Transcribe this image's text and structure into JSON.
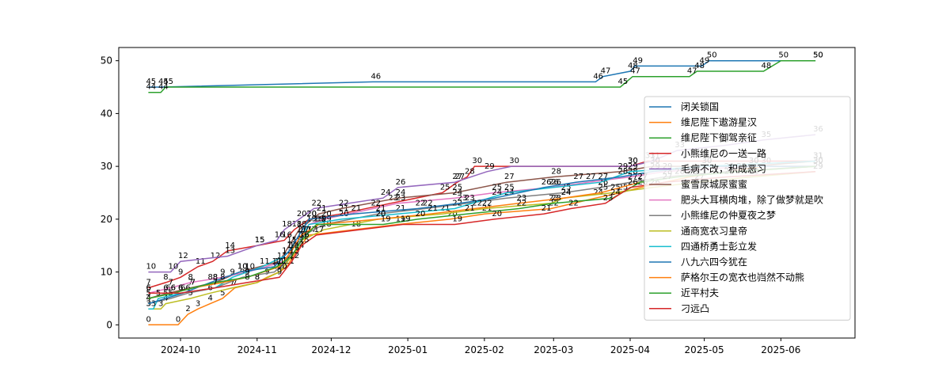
{
  "chart_data": {
    "type": "line",
    "title": "",
    "xlabel": "",
    "ylabel": "",
    "grid": false,
    "legend_position": "center-right",
    "x_range": [
      "2024-09-06",
      "2025-07-01"
    ],
    "ylim": [
      -2.5,
      52.5
    ],
    "x_ticks": [
      {
        "date": "2024-10-01",
        "label": "2024-10"
      },
      {
        "date": "2024-11-01",
        "label": "2024-11"
      },
      {
        "date": "2024-12-01",
        "label": "2024-12"
      },
      {
        "date": "2025-01-01",
        "label": "2025-01"
      },
      {
        "date": "2025-02-01",
        "label": "2025-02"
      },
      {
        "date": "2025-03-01",
        "label": "2025-03"
      },
      {
        "date": "2025-04-01",
        "label": "2025-04"
      },
      {
        "date": "2025-05-01",
        "label": "2025-05"
      },
      {
        "date": "2025-06-01",
        "label": "2025-06"
      }
    ],
    "y_ticks": [
      0,
      10,
      20,
      30,
      40,
      50
    ],
    "series": [
      {
        "name": "闭关锁国",
        "color": "#1f77b4",
        "points": [
          [
            "2024-09-18",
            45
          ],
          [
            "2024-09-23",
            45
          ],
          [
            "2024-12-18",
            46
          ],
          [
            "2025-03-18",
            46
          ],
          [
            "2025-03-21",
            47
          ],
          [
            "2025-04-01",
            48
          ],
          [
            "2025-04-03",
            49
          ],
          [
            "2025-04-30",
            49
          ],
          [
            "2025-05-03",
            50
          ],
          [
            "2025-06-15",
            50
          ]
        ]
      },
      {
        "name": "维尼陛下遨游星汉",
        "color": "#ff7f0e",
        "points": [
          [
            "2024-09-18",
            0
          ],
          [
            "2024-09-30",
            0
          ],
          [
            "2024-10-04",
            2
          ],
          [
            "2024-10-08",
            3
          ],
          [
            "2024-10-13",
            4
          ],
          [
            "2024-10-18",
            5
          ],
          [
            "2024-10-23",
            7
          ],
          [
            "2024-11-01",
            8
          ],
          [
            "2024-11-05",
            9
          ],
          [
            "2024-11-10",
            10
          ],
          [
            "2024-11-13",
            11
          ],
          [
            "2024-11-17",
            14
          ],
          [
            "2024-11-22",
            17
          ],
          [
            "2024-12-10",
            18
          ],
          [
            "2024-12-28",
            19
          ],
          [
            "2025-01-18",
            20
          ],
          [
            "2025-02-01",
            21
          ],
          [
            "2025-02-28",
            22
          ],
          [
            "2025-03-18",
            24
          ],
          [
            "2025-03-28",
            25
          ],
          [
            "2025-04-05",
            26
          ],
          [
            "2025-04-25",
            28
          ],
          [
            "2025-05-25",
            30
          ],
          [
            "2025-06-15",
            30
          ]
        ]
      },
      {
        "name": "维尼陛下御驾亲征",
        "color": "#2ca02c",
        "points": [
          [
            "2024-09-18",
            44
          ],
          [
            "2024-09-23",
            44
          ],
          [
            "2024-09-25",
            45
          ],
          [
            "2025-03-28",
            45
          ],
          [
            "2025-04-02",
            47
          ],
          [
            "2025-04-25",
            47
          ],
          [
            "2025-04-28",
            48
          ],
          [
            "2025-05-25",
            48
          ],
          [
            "2025-06-01",
            50
          ],
          [
            "2025-06-15",
            50
          ]
        ]
      },
      {
        "name": "小熊维尼の一送一路",
        "color": "#d62728",
        "points": [
          [
            "2024-09-18",
            7
          ],
          [
            "2024-09-25",
            8
          ],
          [
            "2024-10-01",
            9
          ],
          [
            "2024-10-08",
            11
          ],
          [
            "2024-10-14",
            12
          ],
          [
            "2024-10-20",
            14
          ],
          [
            "2024-11-01",
            15
          ],
          [
            "2024-11-12",
            16
          ],
          [
            "2024-11-16",
            18
          ],
          [
            "2024-11-22",
            20
          ],
          [
            "2024-12-05",
            21
          ],
          [
            "2024-12-25",
            23
          ],
          [
            "2025-01-15",
            25
          ],
          [
            "2025-01-21",
            27
          ],
          [
            "2025-01-25",
            28
          ],
          [
            "2025-01-28",
            30
          ],
          [
            "2025-04-01",
            30
          ],
          [
            "2025-04-08",
            31
          ],
          [
            "2025-06-15",
            31
          ]
        ]
      },
      {
        "name": "毛病不改，积成恶习",
        "color": "#9467bd",
        "points": [
          [
            "2024-09-18",
            10
          ],
          [
            "2024-09-27",
            10
          ],
          [
            "2024-10-01",
            12
          ],
          [
            "2024-10-20",
            13
          ],
          [
            "2024-11-01",
            15
          ],
          [
            "2024-11-09",
            16
          ],
          [
            "2024-11-12",
            18
          ],
          [
            "2024-11-18",
            20
          ],
          [
            "2024-11-24",
            22
          ],
          [
            "2024-12-22",
            24
          ],
          [
            "2024-12-28",
            26
          ],
          [
            "2025-01-20",
            27
          ],
          [
            "2025-02-02",
            29
          ],
          [
            "2025-02-12",
            30
          ],
          [
            "2025-04-01",
            30
          ],
          [
            "2025-04-10",
            31
          ],
          [
            "2025-04-20",
            33
          ],
          [
            "2025-05-10",
            34
          ],
          [
            "2025-05-25",
            35
          ],
          [
            "2025-06-15",
            36
          ]
        ]
      },
      {
        "name": "蜜雪尿城尿蜜蜜",
        "color": "#8c564b",
        "points": [
          [
            "2024-09-18",
            5
          ],
          [
            "2024-09-26",
            6
          ],
          [
            "2024-10-05",
            7
          ],
          [
            "2024-10-15",
            8
          ],
          [
            "2024-10-25",
            10
          ],
          [
            "2024-11-10",
            12
          ],
          [
            "2024-11-14",
            15
          ],
          [
            "2024-11-18",
            18
          ],
          [
            "2024-11-26",
            21
          ],
          [
            "2024-12-05",
            22
          ],
          [
            "2024-12-28",
            24
          ],
          [
            "2025-01-20",
            25
          ],
          [
            "2025-02-10",
            27
          ],
          [
            "2025-03-01",
            28
          ],
          [
            "2025-03-28",
            29
          ],
          [
            "2025-04-10",
            30
          ],
          [
            "2025-05-20",
            30
          ],
          [
            "2025-06-15",
            31
          ]
        ]
      },
      {
        "name": "肥头大耳横肉堆，除了做梦就是吹",
        "color": "#e377c2",
        "points": [
          [
            "2024-09-18",
            6
          ],
          [
            "2024-09-27",
            7
          ],
          [
            "2024-10-05",
            8
          ],
          [
            "2024-10-18",
            9
          ],
          [
            "2024-10-28",
            10
          ],
          [
            "2024-11-12",
            12
          ],
          [
            "2024-11-16",
            15
          ],
          [
            "2024-11-22",
            19
          ],
          [
            "2024-11-28",
            20
          ],
          [
            "2024-12-18",
            22
          ],
          [
            "2024-12-28",
            23
          ],
          [
            "2025-01-20",
            24
          ],
          [
            "2025-02-05",
            25
          ],
          [
            "2025-02-28",
            26
          ],
          [
            "2025-03-15",
            27
          ],
          [
            "2025-04-01",
            28
          ],
          [
            "2025-04-15",
            29
          ],
          [
            "2025-05-20",
            30
          ],
          [
            "2025-06-15",
            30
          ]
        ]
      },
      {
        "name": "小熊维尼の仲夏夜之梦",
        "color": "#7f7f7f",
        "points": [
          [
            "2024-09-18",
            4
          ],
          [
            "2024-09-27",
            5
          ],
          [
            "2024-10-04",
            6
          ],
          [
            "2024-10-15",
            7
          ],
          [
            "2024-10-26",
            9
          ],
          [
            "2024-11-08",
            10
          ],
          [
            "2024-11-15",
            13
          ],
          [
            "2024-11-20",
            17
          ],
          [
            "2024-11-28",
            19
          ],
          [
            "2024-12-20",
            21
          ],
          [
            "2025-01-08",
            22
          ],
          [
            "2025-01-25",
            23
          ],
          [
            "2025-02-10",
            24
          ],
          [
            "2025-03-05",
            25
          ],
          [
            "2025-03-20",
            26
          ],
          [
            "2025-04-01",
            27
          ],
          [
            "2025-04-15",
            28
          ],
          [
            "2025-05-10",
            29
          ],
          [
            "2025-06-15",
            30
          ]
        ]
      },
      {
        "name": "通商宽衣习皇帝",
        "color": "#bcbd22",
        "points": [
          [
            "2024-09-18",
            3
          ],
          [
            "2024-09-23",
            3
          ],
          [
            "2024-09-25",
            4
          ],
          [
            "2024-10-05",
            5
          ],
          [
            "2024-10-13",
            6
          ],
          [
            "2024-10-22",
            7
          ],
          [
            "2024-11-01",
            8
          ],
          [
            "2024-11-10",
            10
          ],
          [
            "2024-11-15",
            13
          ],
          [
            "2024-11-19",
            16
          ],
          [
            "2024-11-28",
            18
          ],
          [
            "2024-12-20",
            20
          ],
          [
            "2025-01-15",
            21
          ],
          [
            "2025-02-01",
            22
          ],
          [
            "2025-02-28",
            23
          ],
          [
            "2025-03-05",
            24
          ],
          [
            "2025-03-25",
            25
          ],
          [
            "2025-04-10",
            26
          ],
          [
            "2025-04-28",
            27
          ],
          [
            "2025-05-20",
            28
          ],
          [
            "2025-06-15",
            29
          ]
        ]
      },
      {
        "name": "四通桥勇士彭立发",
        "color": "#17becf",
        "points": [
          [
            "2024-09-18",
            3
          ],
          [
            "2024-09-20",
            3
          ],
          [
            "2024-09-22",
            5
          ],
          [
            "2024-10-01",
            6
          ],
          [
            "2024-10-15",
            7
          ],
          [
            "2024-10-22",
            9
          ],
          [
            "2024-11-03",
            11
          ],
          [
            "2024-11-12",
            13
          ],
          [
            "2024-11-18",
            16
          ],
          [
            "2024-11-22",
            19
          ],
          [
            "2024-12-05",
            20
          ],
          [
            "2024-12-28",
            21
          ],
          [
            "2025-01-20",
            22
          ],
          [
            "2025-02-10",
            25
          ],
          [
            "2025-03-01",
            26
          ],
          [
            "2025-03-20",
            27
          ],
          [
            "2025-04-01",
            29
          ],
          [
            "2025-05-01",
            30
          ],
          [
            "2025-06-15",
            31
          ]
        ]
      },
      {
        "name": "八九六四今犹在",
        "color": "#1f77b4",
        "points": [
          [
            "2024-09-18",
            4
          ],
          [
            "2024-09-25",
            5
          ],
          [
            "2024-10-02",
            6
          ],
          [
            "2024-10-13",
            8
          ],
          [
            "2024-10-25",
            10
          ],
          [
            "2024-11-08",
            11
          ],
          [
            "2024-11-14",
            14
          ],
          [
            "2024-11-18",
            17
          ],
          [
            "2024-11-22",
            20
          ],
          [
            "2024-12-10",
            21
          ],
          [
            "2025-01-05",
            22
          ],
          [
            "2025-01-22",
            23
          ],
          [
            "2025-02-05",
            24
          ],
          [
            "2025-02-25",
            26
          ],
          [
            "2025-03-10",
            27
          ],
          [
            "2025-03-28",
            28
          ],
          [
            "2025-04-10",
            29
          ],
          [
            "2025-05-01",
            30
          ],
          [
            "2025-06-15",
            30
          ]
        ]
      },
      {
        "name": "萨格尔王の宽衣也岿然不动熊",
        "color": "#ff7f0e",
        "points": [
          [
            "2024-09-18",
            5
          ],
          [
            "2024-09-28",
            6
          ],
          [
            "2024-10-06",
            7
          ],
          [
            "2024-10-18",
            8
          ],
          [
            "2024-10-28",
            9
          ],
          [
            "2024-11-10",
            11
          ],
          [
            "2024-11-15",
            14
          ],
          [
            "2024-11-19",
            17
          ],
          [
            "2024-11-26",
            19
          ],
          [
            "2024-12-20",
            20
          ],
          [
            "2025-01-10",
            21
          ],
          [
            "2025-01-28",
            22
          ],
          [
            "2025-02-15",
            23
          ],
          [
            "2025-03-05",
            24
          ],
          [
            "2025-03-20",
            25
          ],
          [
            "2025-04-05",
            27
          ],
          [
            "2025-04-20",
            28
          ],
          [
            "2025-05-15",
            29
          ],
          [
            "2025-06-15",
            30
          ]
        ]
      },
      {
        "name": "近平村夫",
        "color": "#2ca02c",
        "points": [
          [
            "2024-09-18",
            5
          ],
          [
            "2024-09-28",
            6
          ],
          [
            "2024-10-06",
            7
          ],
          [
            "2024-10-15",
            8
          ],
          [
            "2024-10-28",
            9
          ],
          [
            "2024-11-09",
            11
          ],
          [
            "2024-11-15",
            13
          ],
          [
            "2024-11-19",
            16
          ],
          [
            "2024-11-25",
            19
          ],
          [
            "2024-12-22",
            19
          ],
          [
            "2025-01-05",
            20
          ],
          [
            "2025-01-25",
            21
          ],
          [
            "2025-02-15",
            22
          ],
          [
            "2025-03-01",
            23
          ],
          [
            "2025-03-25",
            24
          ],
          [
            "2025-04-05",
            27
          ],
          [
            "2025-04-20",
            28
          ],
          [
            "2025-05-15",
            29
          ],
          [
            "2025-06-15",
            30
          ]
        ]
      },
      {
        "name": "刁远凸",
        "color": "#d62728",
        "points": [
          [
            "2024-09-18",
            6
          ],
          [
            "2024-09-25",
            6
          ],
          [
            "2024-10-01",
            6
          ],
          [
            "2024-10-15",
            7
          ],
          [
            "2024-10-28",
            8
          ],
          [
            "2024-11-10",
            9
          ],
          [
            "2024-11-15",
            12
          ],
          [
            "2024-11-19",
            15
          ],
          [
            "2024-11-25",
            17
          ],
          [
            "2024-12-30",
            19
          ],
          [
            "2025-01-20",
            19
          ],
          [
            "2025-02-05",
            20
          ],
          [
            "2025-02-25",
            21
          ],
          [
            "2025-03-08",
            22
          ],
          [
            "2025-03-22",
            23
          ],
          [
            "2025-04-01",
            26
          ],
          [
            "2025-04-15",
            27
          ],
          [
            "2025-05-10",
            28
          ],
          [
            "2025-06-15",
            29
          ]
        ]
      }
    ]
  }
}
